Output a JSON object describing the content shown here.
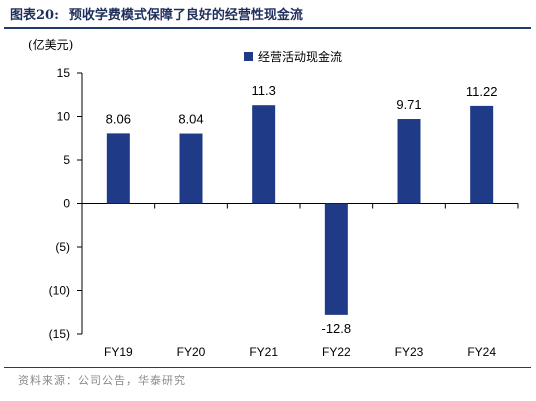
{
  "header": {
    "figure_no": "图表20:",
    "title": "预收学费模式保障了良好的经营性现金流"
  },
  "footer": {
    "source": "资料来源：公司公告，华泰研究"
  },
  "colors": {
    "bar": "#1f3a87",
    "rule": "#1f3a6e",
    "axis": "#000000"
  },
  "chart_data": {
    "type": "bar",
    "title": "预收学费模式保障了良好的经营性现金流",
    "unit_label": "(亿美元)",
    "categories": [
      "FY19",
      "FY20",
      "FY21",
      "FY22",
      "FY23",
      "FY24"
    ],
    "series": [
      {
        "name": "经营活动现金流",
        "values": [
          8.06,
          8.04,
          11.3,
          -12.8,
          9.71,
          11.22
        ],
        "value_labels": [
          "8.06",
          "8.04",
          "11.3",
          "-12.8",
          "9.71",
          "11.22"
        ]
      }
    ],
    "ylim": [
      -15,
      15
    ],
    "yticks": [
      15,
      10,
      5,
      0,
      -5,
      -10,
      -15
    ],
    "ytick_labels": [
      "15",
      "10",
      "5",
      "0",
      "(5)",
      "(10)",
      "(15)"
    ],
    "legend_position": "top-center",
    "grid": false
  }
}
